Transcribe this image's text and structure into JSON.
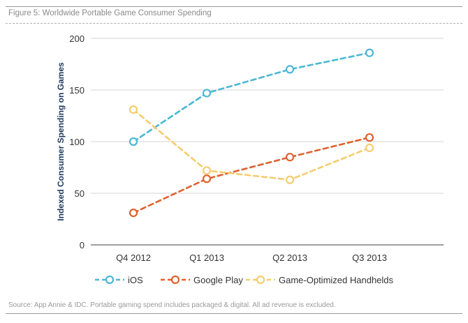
{
  "figure_title": "Figure 5:  Worldwide Portable Game Consumer Spending",
  "source_note": "Source: App Annie & IDC. Portable gaming spend includes packaged & digital. All ad revenue is excluded.",
  "chart_data": {
    "type": "line",
    "title": "",
    "xlabel": "",
    "ylabel": "Indexed Consumer Spending on Games",
    "categories": [
      "Q4 2012",
      "Q1 2013",
      "Q2 2013",
      "Q3 2013"
    ],
    "ylim": [
      0,
      200
    ],
    "yticks": [
      0,
      50,
      100,
      150,
      200
    ],
    "grid": true,
    "legend_position": "bottom",
    "series": [
      {
        "name": "iOS",
        "values": [
          100,
          147,
          170,
          186
        ],
        "color": "#4bb8d6"
      },
      {
        "name": "Google Play",
        "values": [
          31,
          64,
          85,
          104
        ],
        "color": "#e0612e"
      },
      {
        "name": "Game-Optimized Handhelds",
        "values": [
          131,
          72,
          63,
          94
        ],
        "color": "#f6cc6d"
      }
    ]
  }
}
